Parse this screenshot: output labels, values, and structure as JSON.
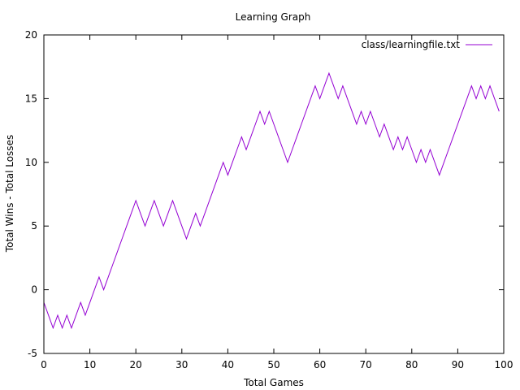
{
  "chart_data": {
    "type": "line",
    "title": "Learning Graph",
    "xlabel": "Total Games",
    "ylabel": "Total Wins - Total Losses",
    "xlim": [
      0,
      100
    ],
    "ylim": [
      -5,
      20
    ],
    "xticks": [
      0,
      10,
      20,
      30,
      40,
      50,
      60,
      70,
      80,
      90,
      100
    ],
    "yticks": [
      -5,
      0,
      5,
      10,
      15,
      20
    ],
    "grid": false,
    "legend_position": "top-right",
    "series": [
      {
        "name": "class/learningfile.txt",
        "color": "#9400d3",
        "x": [
          0,
          1,
          2,
          3,
          4,
          5,
          6,
          7,
          8,
          9,
          10,
          11,
          12,
          13,
          14,
          15,
          16,
          17,
          18,
          19,
          20,
          21,
          22,
          23,
          24,
          25,
          26,
          27,
          28,
          29,
          30,
          31,
          32,
          33,
          34,
          35,
          36,
          37,
          38,
          39,
          40,
          41,
          42,
          43,
          44,
          45,
          46,
          47,
          48,
          49,
          50,
          51,
          52,
          53,
          54,
          55,
          56,
          57,
          58,
          59,
          60,
          61,
          62,
          63,
          64,
          65,
          66,
          67,
          68,
          69,
          70,
          71,
          72,
          73,
          74,
          75,
          76,
          77,
          78,
          79,
          80,
          81,
          82,
          83,
          84,
          85,
          86,
          87,
          88,
          89,
          90,
          91,
          92,
          93,
          94,
          95,
          96,
          97,
          98,
          99
        ],
        "y": [
          -1,
          -2,
          -3,
          -2,
          -3,
          -2,
          -3,
          -2,
          -1,
          -2,
          -1,
          0,
          1,
          0,
          1,
          2,
          3,
          4,
          5,
          6,
          7,
          6,
          5,
          6,
          7,
          6,
          5,
          6,
          7,
          6,
          5,
          4,
          5,
          6,
          5,
          6,
          7,
          8,
          9,
          10,
          9,
          10,
          11,
          12,
          11,
          12,
          13,
          14,
          13,
          14,
          13,
          12,
          11,
          10,
          11,
          12,
          13,
          14,
          15,
          16,
          15,
          16,
          17,
          16,
          15,
          16,
          15,
          14,
          13,
          14,
          13,
          14,
          13,
          12,
          13,
          12,
          11,
          12,
          11,
          12,
          11,
          10,
          11,
          10,
          11,
          10,
          9,
          10,
          11,
          12,
          13,
          14,
          15,
          16,
          15,
          16,
          15,
          16,
          15,
          14
        ]
      }
    ]
  }
}
